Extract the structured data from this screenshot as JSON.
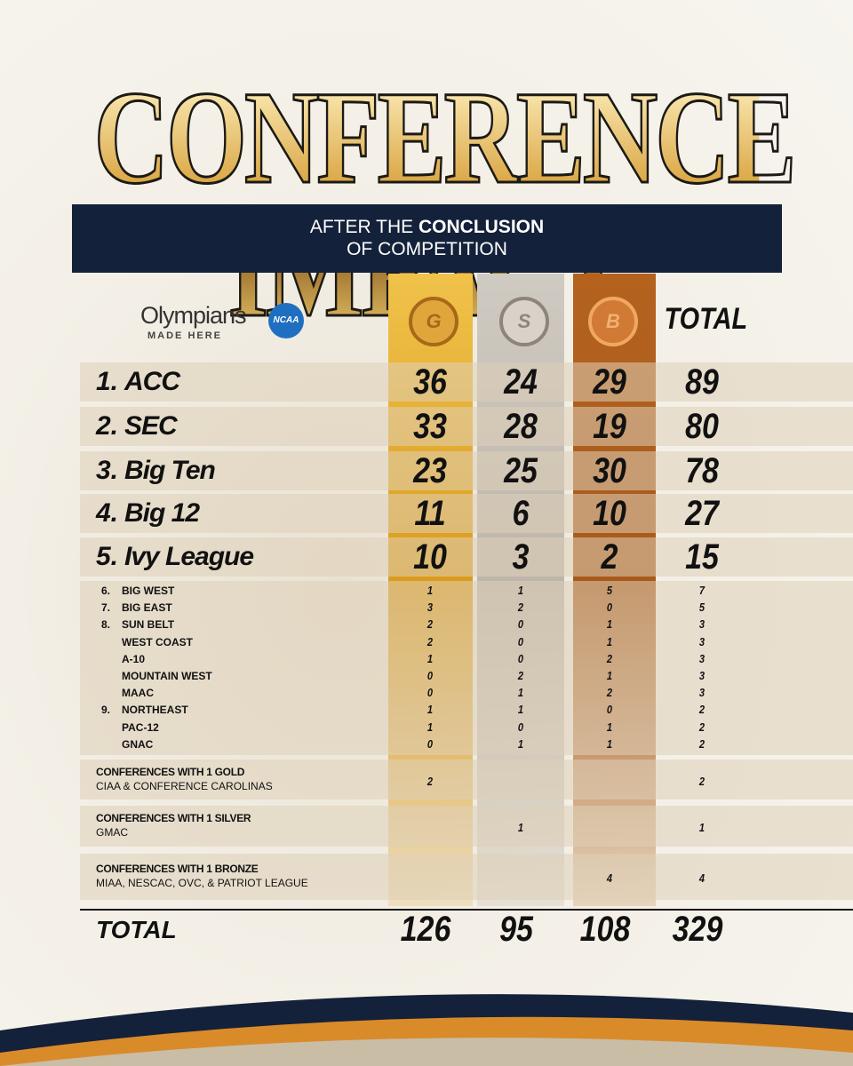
{
  "header": {
    "title": "CONFERENCE IMPACT",
    "subtitle_pre": "AFTER THE",
    "subtitle_bold": "CONCLUSION",
    "subtitle_post": "OF COMPETITION"
  },
  "logo": {
    "line1": "Olympians",
    "line2": "MADE HERE",
    "badge": "NCAA"
  },
  "columns": {
    "gold": "G",
    "silver": "S",
    "bronze": "B",
    "total": "TOTAL"
  },
  "top": [
    {
      "rank": "1.",
      "name": "ACC",
      "gold": 36,
      "silver": 24,
      "bronze": 29,
      "total": 89
    },
    {
      "rank": "2.",
      "name": "SEC",
      "gold": 33,
      "silver": 28,
      "bronze": 19,
      "total": 80
    },
    {
      "rank": "3.",
      "name": "Big Ten",
      "gold": 23,
      "silver": 25,
      "bronze": 30,
      "total": 78
    },
    {
      "rank": "4.",
      "name": "Big 12",
      "gold": 11,
      "silver": 6,
      "bronze": 10,
      "total": 27
    },
    {
      "rank": "5.",
      "name": "Ivy League",
      "gold": 10,
      "silver": 3,
      "bronze": 2,
      "total": 15
    }
  ],
  "others": [
    {
      "rank": "6.",
      "name": "BIG WEST",
      "gold": 1,
      "silver": 1,
      "bronze": 5,
      "total": 7
    },
    {
      "rank": "7.",
      "name": "BIG EAST",
      "gold": 3,
      "silver": 2,
      "bronze": 0,
      "total": 5
    },
    {
      "rank": "8.",
      "name": "SUN BELT",
      "gold": 2,
      "silver": 0,
      "bronze": 1,
      "total": 3
    },
    {
      "name": "WEST COAST",
      "gold": 2,
      "silver": 0,
      "bronze": 1,
      "total": 3
    },
    {
      "name": "A-10",
      "gold": 1,
      "silver": 0,
      "bronze": 2,
      "total": 3
    },
    {
      "name": "MOUNTAIN WEST",
      "gold": 0,
      "silver": 2,
      "bronze": 1,
      "total": 3
    },
    {
      "name": "MAAC",
      "gold": 0,
      "silver": 1,
      "bronze": 2,
      "total": 3
    },
    {
      "rank": "9.",
      "name": "NORTHEAST",
      "gold": 1,
      "silver": 1,
      "bronze": 0,
      "total": 2
    },
    {
      "name": "PAC-12",
      "gold": 1,
      "silver": 0,
      "bronze": 1,
      "total": 2
    },
    {
      "name": "GNAC",
      "gold": 0,
      "silver": 1,
      "bronze": 1,
      "total": 2
    }
  ],
  "groups": [
    {
      "heading": "CONFERENCES WITH 1 GOLD",
      "members": "CIAA & CONFERENCE CAROLINAS",
      "gold": 2,
      "total": 2
    },
    {
      "heading": "CONFERENCES WITH 1 SILVER",
      "members": "GMAC",
      "silver": 1,
      "total": 1
    },
    {
      "heading": "CONFERENCES WITH 1 BRONZE",
      "members": "MIAA, NESCAC, OVC, & PATRIOT LEAGUE",
      "bronze": 4,
      "total": 4
    }
  ],
  "totals": {
    "label": "TOTAL",
    "gold": 126,
    "silver": 95,
    "bronze": 108,
    "total": 329
  }
}
